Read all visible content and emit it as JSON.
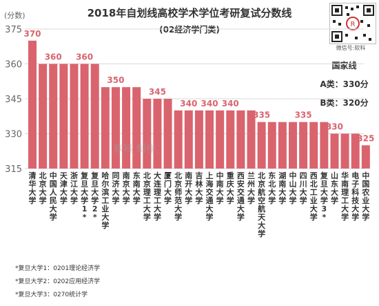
{
  "chart_data": {
    "type": "bar",
    "title": "2018年自划线高校学术学位考研复试分数线",
    "subtitle": "(02经济学门类)",
    "ylabel": "(分数)",
    "ylim": [
      315,
      375
    ],
    "yticks": [
      315,
      330,
      345,
      360,
      375
    ],
    "bar_color": "#D9646E",
    "categories": [
      "清华大学",
      "北京大学",
      "中国人民大学",
      "天津大学",
      "浙江大学",
      "复旦大学1*",
      "复旦大学2*",
      "哈尔滨工业大学",
      "同济大学",
      "南京大学",
      "东南大学",
      "北京理工大学",
      "大连理工大学",
      "厦门大学",
      "北京师范大学",
      "南开大学",
      "吉林大学",
      "上海交通大学",
      "中南大学",
      "重庆大学",
      "西安交通大学",
      "兰州大学",
      "北京航空航天大学",
      "东北大学",
      "湖南大学",
      "中山大学",
      "四川大学",
      "西北工业大学",
      "复旦大学3*",
      "山东大学",
      "华南理工大学",
      "电子科技大学",
      "中国农业大学"
    ],
    "values": [
      370,
      360,
      360,
      360,
      360,
      360,
      360,
      350,
      350,
      350,
      350,
      345,
      345,
      345,
      340,
      340,
      340,
      340,
      340,
      340,
      340,
      340,
      335,
      335,
      335,
      335,
      335,
      335,
      335,
      330,
      330,
      330,
      325
    ],
    "data_labels": [
      {
        "index": 0,
        "text": "370"
      },
      {
        "index": 2,
        "text": "360"
      },
      {
        "index": 5,
        "text": "360"
      },
      {
        "index": 8,
        "text": "350"
      },
      {
        "index": 12,
        "text": "345"
      },
      {
        "index": 15,
        "text": "340"
      },
      {
        "index": 17,
        "text": "340"
      },
      {
        "index": 19,
        "text": "340"
      },
      {
        "index": 22,
        "text": "335"
      },
      {
        "index": 26,
        "text": "335"
      },
      {
        "index": 29,
        "text": "330"
      },
      {
        "index": 32,
        "text": "325"
      }
    ]
  },
  "national_line": {
    "title": "国家线",
    "a_label": "A类：330分",
    "b_label": "B类：320分"
  },
  "qr": {
    "caption": "微信号:软科"
  },
  "watermark": "软科 制作",
  "notes": [
    "*复旦大学1：0201理论经济学",
    "*复旦大学2：0202应用经济学",
    "*复旦大学3：0270统计学"
  ]
}
